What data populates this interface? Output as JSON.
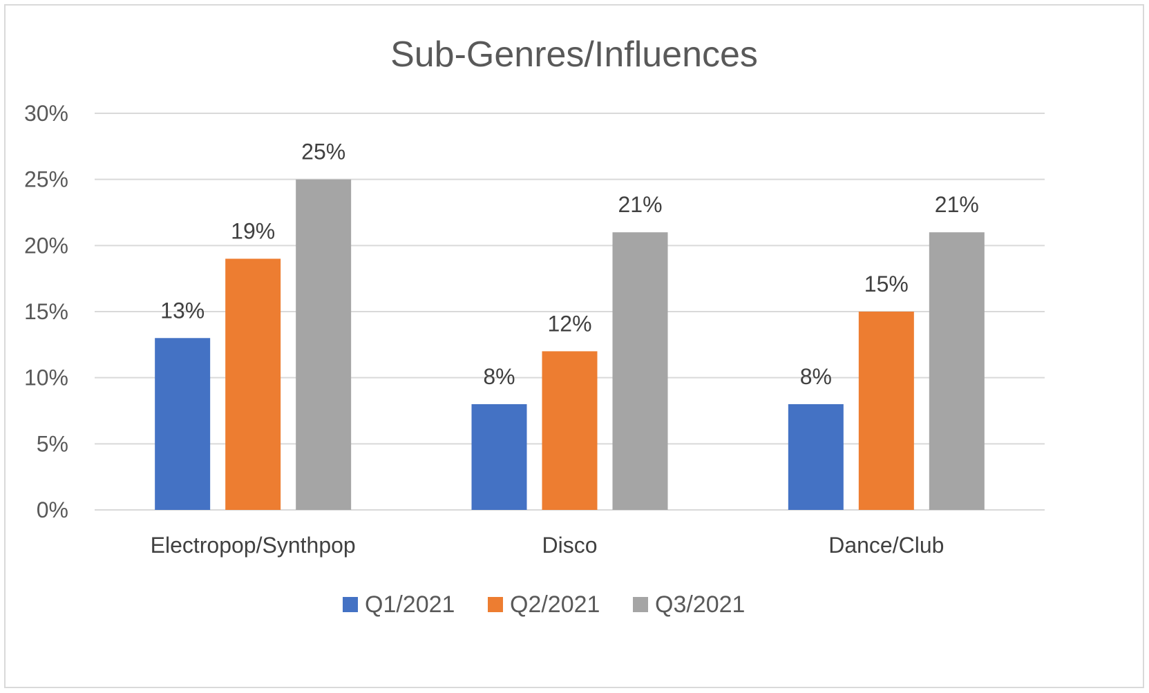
{
  "chart_data": {
    "type": "bar",
    "title": "Sub-Genres/Influences",
    "categories": [
      "Electropop/Synthpop",
      "Disco",
      "Dance/Club"
    ],
    "series": [
      {
        "name": "Q1/2021",
        "color": "#4472c4",
        "values": [
          13,
          8,
          8
        ],
        "labels": [
          "13%",
          "8%",
          "8%"
        ]
      },
      {
        "name": "Q2/2021",
        "color": "#ed7d31",
        "values": [
          19,
          12,
          15
        ],
        "labels": [
          "19%",
          "12%",
          "15%"
        ]
      },
      {
        "name": "Q3/2021",
        "color": "#a5a5a5",
        "values": [
          25,
          21,
          21
        ],
        "labels": [
          "25%",
          "21%",
          "21%"
        ]
      }
    ],
    "y_ticks": [
      0,
      5,
      10,
      15,
      20,
      25,
      30
    ],
    "y_tick_labels": [
      "0%",
      "5%",
      "10%",
      "15%",
      "20%",
      "25%",
      "30%"
    ],
    "ylim": [
      0,
      30
    ],
    "grid": true,
    "legend_position": "bottom"
  }
}
